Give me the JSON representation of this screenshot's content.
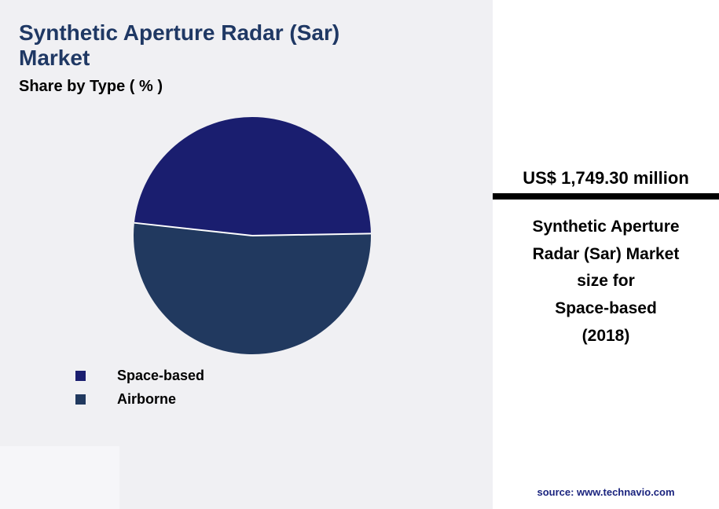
{
  "header": {
    "title": "Synthetic Aperture Radar (Sar)\nMarket",
    "subtitle": "Share by Type ( % )"
  },
  "chart_data": {
    "type": "pie",
    "title": "Synthetic Aperture Radar (Sar) Market Share by Type ( % )",
    "categories": [
      "Space-based",
      "Airborne"
    ],
    "values": [
      48,
      52
    ],
    "unit": "%",
    "colors": [
      "#1a1e6f",
      "#21395f"
    ],
    "legend_position": "bottom-left",
    "start_angle_deg": -1,
    "direction": "counterclockwise",
    "slice_border_color": "#ffffff"
  },
  "info_panel": {
    "headline": "US$ 1,749.30 million",
    "description": "Synthetic Aperture\nRadar (Sar) Market\nsize for\nSpace-based\n(2018)",
    "source": "source: www.technavio.com"
  }
}
